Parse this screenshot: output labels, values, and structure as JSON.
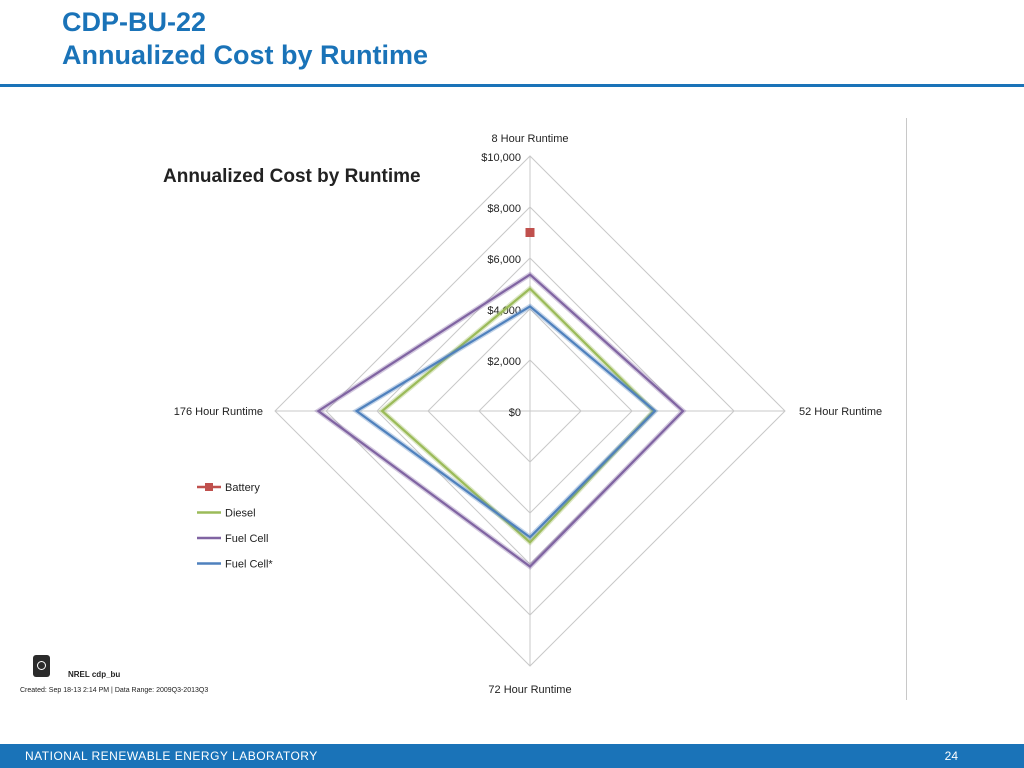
{
  "slide": {
    "title_line1": "CDP-BU-22",
    "title_line2": "Annualized Cost by Runtime"
  },
  "chart_data": {
    "type": "radar",
    "title": "Annualized Cost by Runtime",
    "axes": [
      "8 Hour Runtime",
      "52 Hour Runtime",
      "72 Hour Runtime",
      "176 Hour Runtime"
    ],
    "ticks": [
      "$0",
      "$2,000",
      "$4,000",
      "$6,000",
      "$8,000",
      "$10,000"
    ],
    "range": [
      0,
      10000
    ],
    "grid": true,
    "legend_position": "left",
    "series": [
      {
        "name": "Battery",
        "color": "#c0504d",
        "marker": "square",
        "values": [
          7000,
          null,
          null,
          null
        ]
      },
      {
        "name": "Diesel",
        "color": "#9bbb59",
        "marker": "none",
        "values": [
          4800,
          4850,
          5150,
          5800
        ]
      },
      {
        "name": "Fuel Cell",
        "color": "#8064a2",
        "marker": "none",
        "values": [
          5350,
          6000,
          6100,
          8300
        ]
      },
      {
        "name": "Fuel Cell*",
        "color": "#4f81bd",
        "marker": "none",
        "values": [
          4100,
          4900,
          4950,
          6800
        ]
      }
    ]
  },
  "logo": {
    "name": "NREL cdp_bu",
    "meta": "Created:  Sep 18-13   2:14 PM | Data Range:  2009Q3-2013Q3"
  },
  "footer": {
    "lab": "NATIONAL RENEWABLE ENERGY LABORATORY",
    "page": "24"
  }
}
